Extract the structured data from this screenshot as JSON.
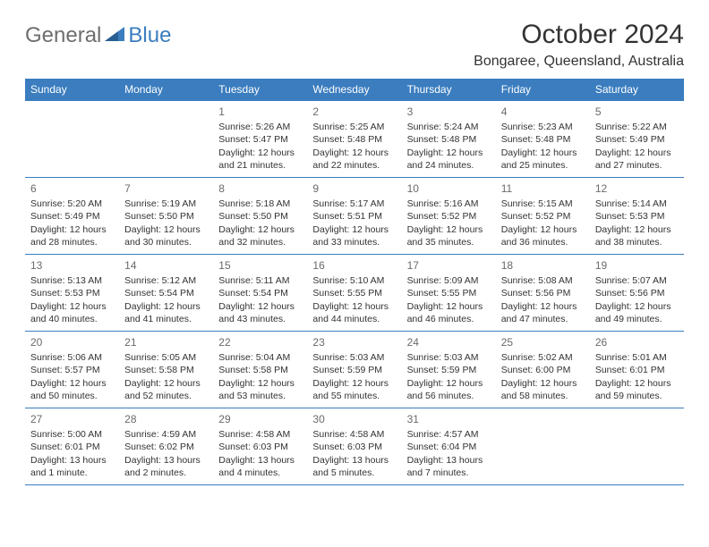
{
  "header": {
    "logo_general": "General",
    "logo_blue": "Blue",
    "month_title": "October 2024",
    "location": "Bongaree, Queensland, Australia"
  },
  "colors": {
    "header_bg": "#3b7dbf",
    "header_text": "#ffffff",
    "border": "#3b7dbf",
    "day_num": "#6a6a6a",
    "body_text": "#333333",
    "logo_gray": "#6e6e6e",
    "logo_blue": "#3b7dbf"
  },
  "day_headers": [
    "Sunday",
    "Monday",
    "Tuesday",
    "Wednesday",
    "Thursday",
    "Friday",
    "Saturday"
  ],
  "weeks": [
    [
      null,
      null,
      {
        "n": "1",
        "sunrise": "Sunrise: 5:26 AM",
        "sunset": "Sunset: 5:47 PM",
        "daylight": "Daylight: 12 hours and 21 minutes."
      },
      {
        "n": "2",
        "sunrise": "Sunrise: 5:25 AM",
        "sunset": "Sunset: 5:48 PM",
        "daylight": "Daylight: 12 hours and 22 minutes."
      },
      {
        "n": "3",
        "sunrise": "Sunrise: 5:24 AM",
        "sunset": "Sunset: 5:48 PM",
        "daylight": "Daylight: 12 hours and 24 minutes."
      },
      {
        "n": "4",
        "sunrise": "Sunrise: 5:23 AM",
        "sunset": "Sunset: 5:48 PM",
        "daylight": "Daylight: 12 hours and 25 minutes."
      },
      {
        "n": "5",
        "sunrise": "Sunrise: 5:22 AM",
        "sunset": "Sunset: 5:49 PM",
        "daylight": "Daylight: 12 hours and 27 minutes."
      }
    ],
    [
      {
        "n": "6",
        "sunrise": "Sunrise: 5:20 AM",
        "sunset": "Sunset: 5:49 PM",
        "daylight": "Daylight: 12 hours and 28 minutes."
      },
      {
        "n": "7",
        "sunrise": "Sunrise: 5:19 AM",
        "sunset": "Sunset: 5:50 PM",
        "daylight": "Daylight: 12 hours and 30 minutes."
      },
      {
        "n": "8",
        "sunrise": "Sunrise: 5:18 AM",
        "sunset": "Sunset: 5:50 PM",
        "daylight": "Daylight: 12 hours and 32 minutes."
      },
      {
        "n": "9",
        "sunrise": "Sunrise: 5:17 AM",
        "sunset": "Sunset: 5:51 PM",
        "daylight": "Daylight: 12 hours and 33 minutes."
      },
      {
        "n": "10",
        "sunrise": "Sunrise: 5:16 AM",
        "sunset": "Sunset: 5:52 PM",
        "daylight": "Daylight: 12 hours and 35 minutes."
      },
      {
        "n": "11",
        "sunrise": "Sunrise: 5:15 AM",
        "sunset": "Sunset: 5:52 PM",
        "daylight": "Daylight: 12 hours and 36 minutes."
      },
      {
        "n": "12",
        "sunrise": "Sunrise: 5:14 AM",
        "sunset": "Sunset: 5:53 PM",
        "daylight": "Daylight: 12 hours and 38 minutes."
      }
    ],
    [
      {
        "n": "13",
        "sunrise": "Sunrise: 5:13 AM",
        "sunset": "Sunset: 5:53 PM",
        "daylight": "Daylight: 12 hours and 40 minutes."
      },
      {
        "n": "14",
        "sunrise": "Sunrise: 5:12 AM",
        "sunset": "Sunset: 5:54 PM",
        "daylight": "Daylight: 12 hours and 41 minutes."
      },
      {
        "n": "15",
        "sunrise": "Sunrise: 5:11 AM",
        "sunset": "Sunset: 5:54 PM",
        "daylight": "Daylight: 12 hours and 43 minutes."
      },
      {
        "n": "16",
        "sunrise": "Sunrise: 5:10 AM",
        "sunset": "Sunset: 5:55 PM",
        "daylight": "Daylight: 12 hours and 44 minutes."
      },
      {
        "n": "17",
        "sunrise": "Sunrise: 5:09 AM",
        "sunset": "Sunset: 5:55 PM",
        "daylight": "Daylight: 12 hours and 46 minutes."
      },
      {
        "n": "18",
        "sunrise": "Sunrise: 5:08 AM",
        "sunset": "Sunset: 5:56 PM",
        "daylight": "Daylight: 12 hours and 47 minutes."
      },
      {
        "n": "19",
        "sunrise": "Sunrise: 5:07 AM",
        "sunset": "Sunset: 5:56 PM",
        "daylight": "Daylight: 12 hours and 49 minutes."
      }
    ],
    [
      {
        "n": "20",
        "sunrise": "Sunrise: 5:06 AM",
        "sunset": "Sunset: 5:57 PM",
        "daylight": "Daylight: 12 hours and 50 minutes."
      },
      {
        "n": "21",
        "sunrise": "Sunrise: 5:05 AM",
        "sunset": "Sunset: 5:58 PM",
        "daylight": "Daylight: 12 hours and 52 minutes."
      },
      {
        "n": "22",
        "sunrise": "Sunrise: 5:04 AM",
        "sunset": "Sunset: 5:58 PM",
        "daylight": "Daylight: 12 hours and 53 minutes."
      },
      {
        "n": "23",
        "sunrise": "Sunrise: 5:03 AM",
        "sunset": "Sunset: 5:59 PM",
        "daylight": "Daylight: 12 hours and 55 minutes."
      },
      {
        "n": "24",
        "sunrise": "Sunrise: 5:03 AM",
        "sunset": "Sunset: 5:59 PM",
        "daylight": "Daylight: 12 hours and 56 minutes."
      },
      {
        "n": "25",
        "sunrise": "Sunrise: 5:02 AM",
        "sunset": "Sunset: 6:00 PM",
        "daylight": "Daylight: 12 hours and 58 minutes."
      },
      {
        "n": "26",
        "sunrise": "Sunrise: 5:01 AM",
        "sunset": "Sunset: 6:01 PM",
        "daylight": "Daylight: 12 hours and 59 minutes."
      }
    ],
    [
      {
        "n": "27",
        "sunrise": "Sunrise: 5:00 AM",
        "sunset": "Sunset: 6:01 PM",
        "daylight": "Daylight: 13 hours and 1 minute."
      },
      {
        "n": "28",
        "sunrise": "Sunrise: 4:59 AM",
        "sunset": "Sunset: 6:02 PM",
        "daylight": "Daylight: 13 hours and 2 minutes."
      },
      {
        "n": "29",
        "sunrise": "Sunrise: 4:58 AM",
        "sunset": "Sunset: 6:03 PM",
        "daylight": "Daylight: 13 hours and 4 minutes."
      },
      {
        "n": "30",
        "sunrise": "Sunrise: 4:58 AM",
        "sunset": "Sunset: 6:03 PM",
        "daylight": "Daylight: 13 hours and 5 minutes."
      },
      {
        "n": "31",
        "sunrise": "Sunrise: 4:57 AM",
        "sunset": "Sunset: 6:04 PM",
        "daylight": "Daylight: 13 hours and 7 minutes."
      },
      null,
      null
    ]
  ]
}
